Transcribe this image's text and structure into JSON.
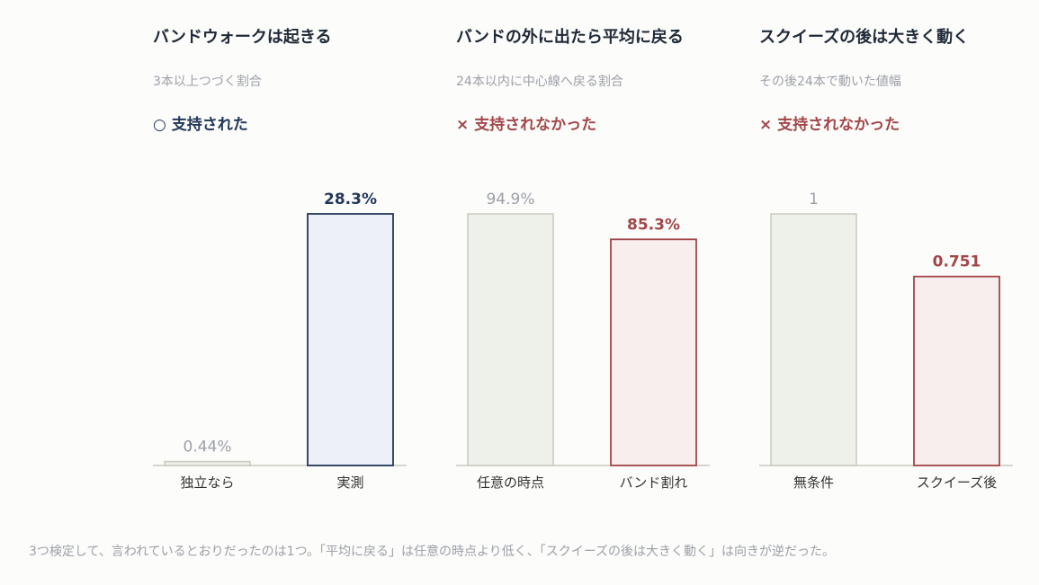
{
  "colors": {
    "baseline_fill": "#eef0ea",
    "baseline_stroke": "#c9c9c0",
    "baseline_label": "#9ca0a8",
    "support_fill": "#edf1f7",
    "support_stroke": "#22375a",
    "support_label": "#22375a",
    "reject_fill": "#f9eeee",
    "reject_stroke": "#a2464a",
    "reject_label": "#a2464a",
    "axis": "#c9c9c0",
    "tick_label": "#333333"
  },
  "chart_data": [
    {
      "type": "bar",
      "title": "バンドウォークは起きる",
      "subtitle": "3本以上つづく割合",
      "verdict": {
        "mark": "○",
        "text": "支持された",
        "status": "support"
      },
      "categories": [
        "独立なら",
        "実測"
      ],
      "values": [
        0.44,
        28.3
      ],
      "value_labels": [
        "0.44%",
        "28.3%"
      ],
      "ylim": [
        0,
        28.3
      ]
    },
    {
      "type": "bar",
      "title": "バンドの外に出たら平均に戻る",
      "subtitle": "24本以内に中心線へ戻る割合",
      "verdict": {
        "mark": "×",
        "text": "支持されなかった",
        "status": "reject"
      },
      "categories": [
        "任意の時点",
        "バンド割れ"
      ],
      "values": [
        94.9,
        85.3
      ],
      "value_labels": [
        "94.9%",
        "85.3%"
      ],
      "ylim": [
        0,
        94.9
      ]
    },
    {
      "type": "bar",
      "title": "スクイーズの後は大きく動く",
      "subtitle": "その後24本で動いた値幅",
      "verdict": {
        "mark": "×",
        "text": "支持されなかった",
        "status": "reject"
      },
      "categories": [
        "無条件",
        "スクイーズ後"
      ],
      "values": [
        1,
        0.751
      ],
      "value_labels": [
        "1",
        "0.751"
      ],
      "ylim": [
        0,
        1
      ]
    }
  ],
  "footnote": "3つ検定して、言われているとおりだったのは1つ。「平均に戻る」は任意の時点より低く、「スクイーズの後は大きく動く」は向きが逆だった。"
}
